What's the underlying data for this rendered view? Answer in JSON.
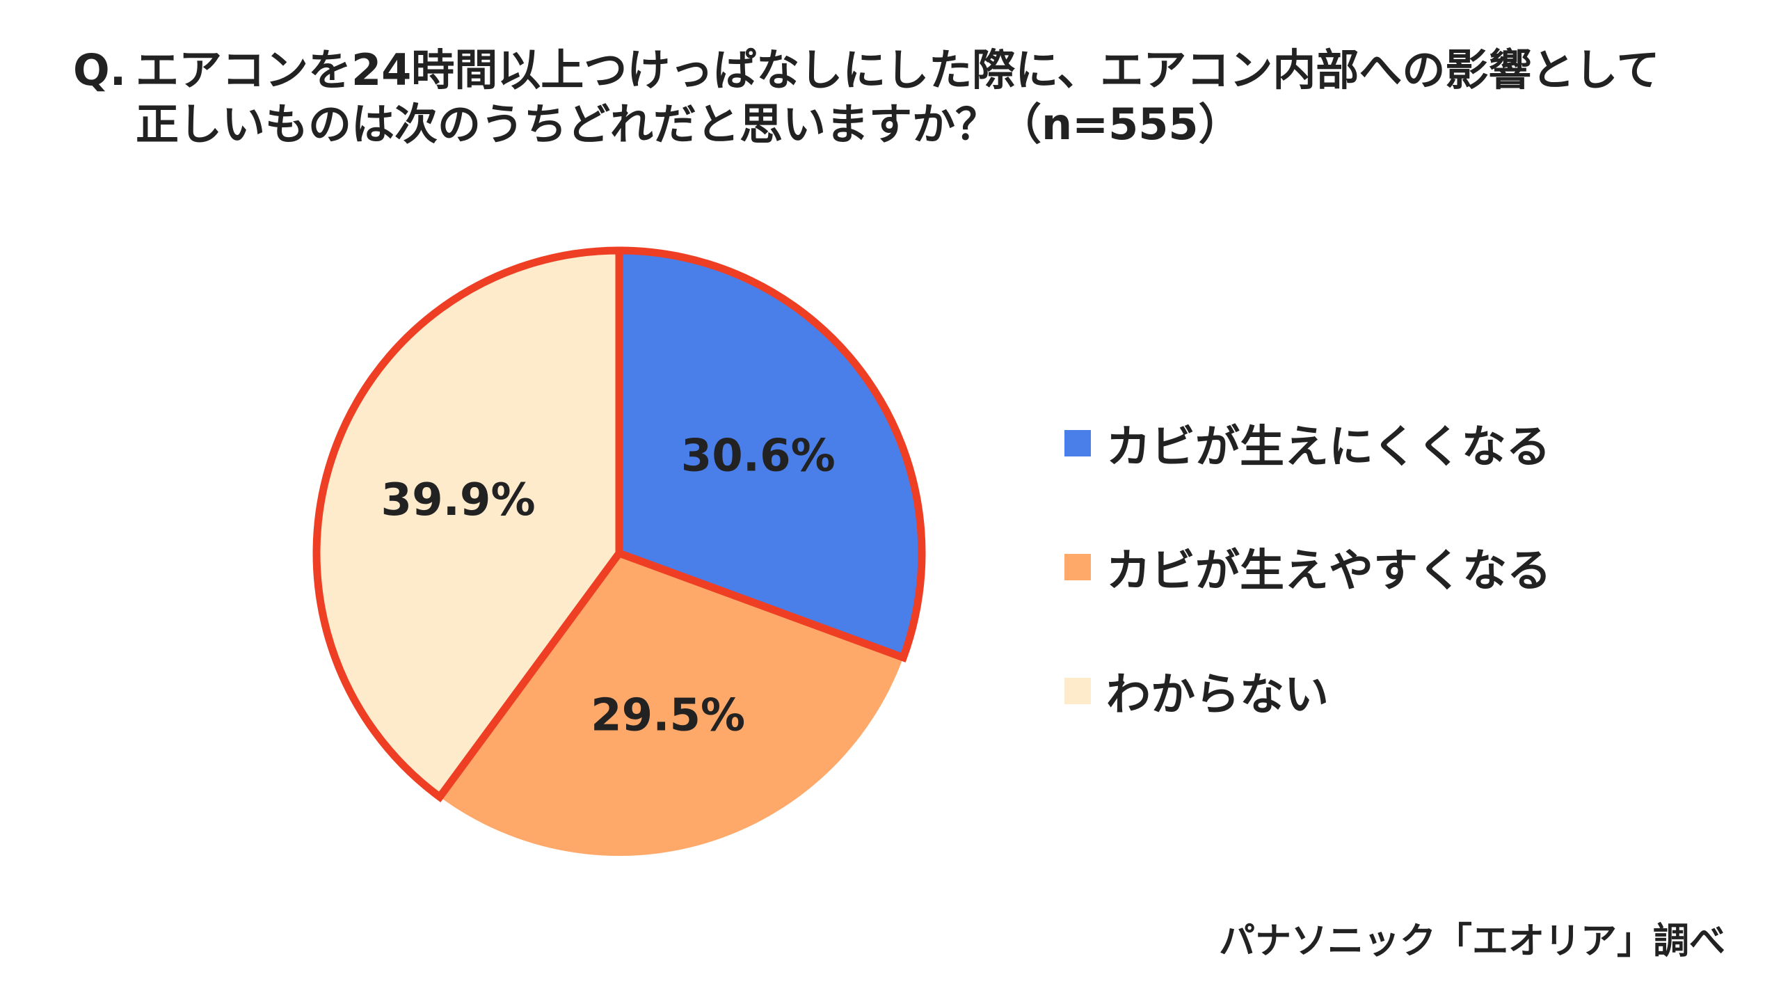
{
  "title": {
    "prefix": "Q.",
    "line1": "エアコンを24時間以上つけっぱなしにした際に、エアコン内部への影響として",
    "line2": "正しいものは次のうちどれだと思いますか？（n=555）"
  },
  "chart_data": {
    "type": "pie",
    "start_angle_deg": 0,
    "direction": "clockwise",
    "slices": [
      {
        "label": "カビが生えにくくなる",
        "value": 30.6,
        "display": "30.6%",
        "color": "#4a7fea"
      },
      {
        "label": "カビが生えやすくなる",
        "value": 29.5,
        "display": "29.5%",
        "color": "#fea869"
      },
      {
        "label": "わからない",
        "value": 39.9,
        "display": "39.9%",
        "color": "#fdebcc"
      }
    ],
    "highlight_outline_color": "#ee3f24",
    "legend_position": "right"
  },
  "source": "パナソニック「エオリア」調べ"
}
